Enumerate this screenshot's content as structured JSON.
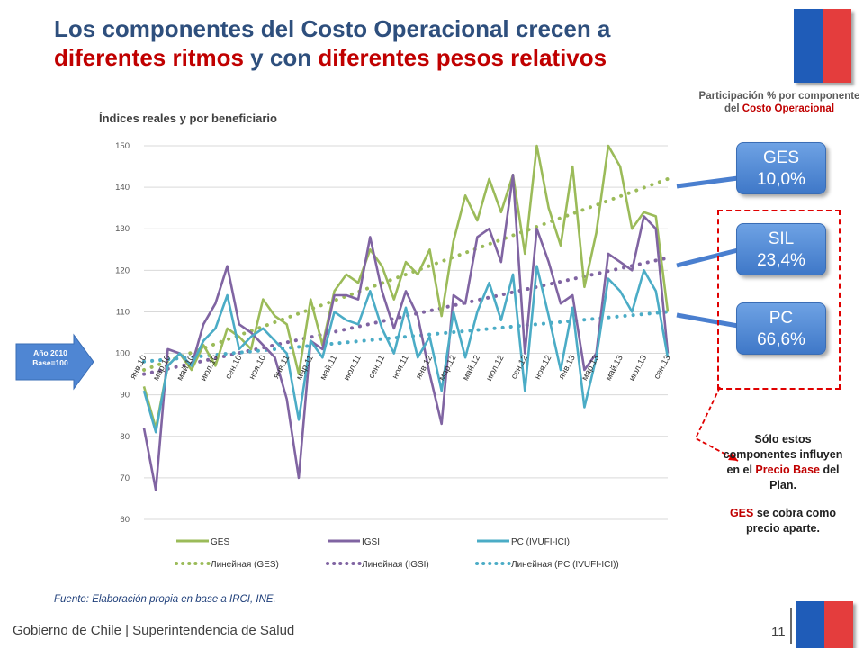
{
  "slide": {
    "title_part1": "Los componentes del Costo Operacional crecen a",
    "title_part2_red": "diferentes ritmos",
    "title_part3": " y con ",
    "title_part4_red": "diferentes pesos relativos",
    "subtitle": "Índices reales y por beneficiario",
    "participation_title_1": "Participación % por componente del ",
    "participation_title_red": "Costo Operacional",
    "base_label_1": "Año 2010",
    "base_label_2": "Base=100",
    "callouts": [
      {
        "name": "GES",
        "value": "10,0%"
      },
      {
        "name": "SIL",
        "value": "23,4%"
      },
      {
        "name": "PC",
        "value": "66,6%"
      }
    ],
    "note_1": "Sólo estos componentes influyen en el ",
    "note_red_1": "Precio Base",
    "note_2": " del Plan.",
    "note_red_2": "GES",
    "note_3": " se cobra como precio aparte.",
    "source": "Fuente: Elaboración propia en base a IRCI, INE.",
    "footer": "Gobierno de Chile | Superintendencia de Salud",
    "page_number": "11",
    "colors": {
      "ges": "#9bbb59",
      "igsi": "#8064a2",
      "pc": "#4bacc6",
      "title_blue": "#2e4f7d",
      "red": "#c00000"
    }
  },
  "chart_data": {
    "type": "line",
    "ylim": [
      60,
      150
    ],
    "yticks": [
      60,
      70,
      80,
      90,
      100,
      110,
      120,
      130,
      140,
      150
    ],
    "grid": true,
    "legend_position": "bottom",
    "x_tick_labels": [
      "янв.10",
      "мар.10",
      "май.10",
      "июл.10",
      "сен.10",
      "ноя.10",
      "янв.11",
      "мар.11",
      "май.11",
      "июл.11",
      "сен.11",
      "ноя.11",
      "янв.12",
      "мар.12",
      "май.12",
      "июл.12",
      "сен.12",
      "ноя.12",
      "янв.13",
      "мар.13",
      "май.13",
      "июл.13",
      "сен.13"
    ],
    "x": [
      "янв.10",
      "фев.10",
      "мар.10",
      "апр.10",
      "май.10",
      "июн.10",
      "июл.10",
      "авг.10",
      "сен.10",
      "окт.10",
      "ноя.10",
      "дек.10",
      "янв.11",
      "фев.11",
      "мар.11",
      "апр.11",
      "май.11",
      "июн.11",
      "июл.11",
      "авг.11",
      "сен.11",
      "окт.11",
      "ноя.11",
      "дек.11",
      "янв.12",
      "фев.12",
      "мар.12",
      "апр.12",
      "май.12",
      "июн.12",
      "июл.12",
      "авг.12",
      "сен.12",
      "окт.12",
      "ноя.12",
      "дек.12",
      "янв.13",
      "фев.13",
      "мар.13",
      "апр.13",
      "май.13",
      "июн.13",
      "июл.13",
      "авг.13",
      "сен.13"
    ],
    "series": [
      {
        "name": "GES",
        "kind": "line",
        "color": "#9bbb59",
        "values": [
          92,
          82,
          97,
          100,
          96,
          102,
          97,
          106,
          104,
          101,
          113,
          109,
          107,
          95,
          113,
          102,
          115,
          119,
          117,
          125,
          121,
          113,
          122,
          119,
          125,
          109,
          127,
          138,
          132,
          142,
          134,
          143,
          124,
          150,
          135,
          126,
          145,
          116,
          129,
          150,
          145,
          130,
          134,
          133,
          110
        ]
      },
      {
        "name": "IGSI",
        "kind": "line",
        "color": "#8064a2",
        "values": [
          82,
          67,
          101,
          100,
          97,
          107,
          112,
          121,
          107,
          105,
          102,
          99,
          89,
          70,
          103,
          101,
          114,
          114,
          113,
          128,
          115,
          106,
          115,
          109,
          95,
          83,
          114,
          112,
          128,
          130,
          122,
          143,
          100,
          130,
          122,
          112,
          114,
          96,
          100,
          124,
          122,
          120,
          133,
          130,
          100
        ]
      },
      {
        "name": "PC (IVUFI-ICI)",
        "kind": "line",
        "color": "#4bacc6",
        "values": [
          91,
          81,
          97,
          100,
          97,
          103,
          106,
          114,
          101,
          104,
          106,
          103,
          100,
          84,
          103,
          99,
          110,
          108,
          107,
          115,
          106,
          100,
          111,
          99,
          104,
          91,
          110,
          99,
          110,
          117,
          108,
          119,
          91,
          121,
          109,
          96,
          111,
          87,
          99,
          118,
          115,
          110,
          120,
          115,
          99
        ]
      },
      {
        "name": "Линейная (GES)",
        "kind": "trend",
        "color": "#9bbb59",
        "from": 96,
        "to": 142
      },
      {
        "name": "Линейная (IGSI)",
        "kind": "trend",
        "color": "#8064a2",
        "from": 95,
        "to": 123
      },
      {
        "name": "Линейная (PC (IVUFI-ICI))",
        "kind": "trend",
        "color": "#4bacc6",
        "from": 98,
        "to": 110
      }
    ]
  }
}
